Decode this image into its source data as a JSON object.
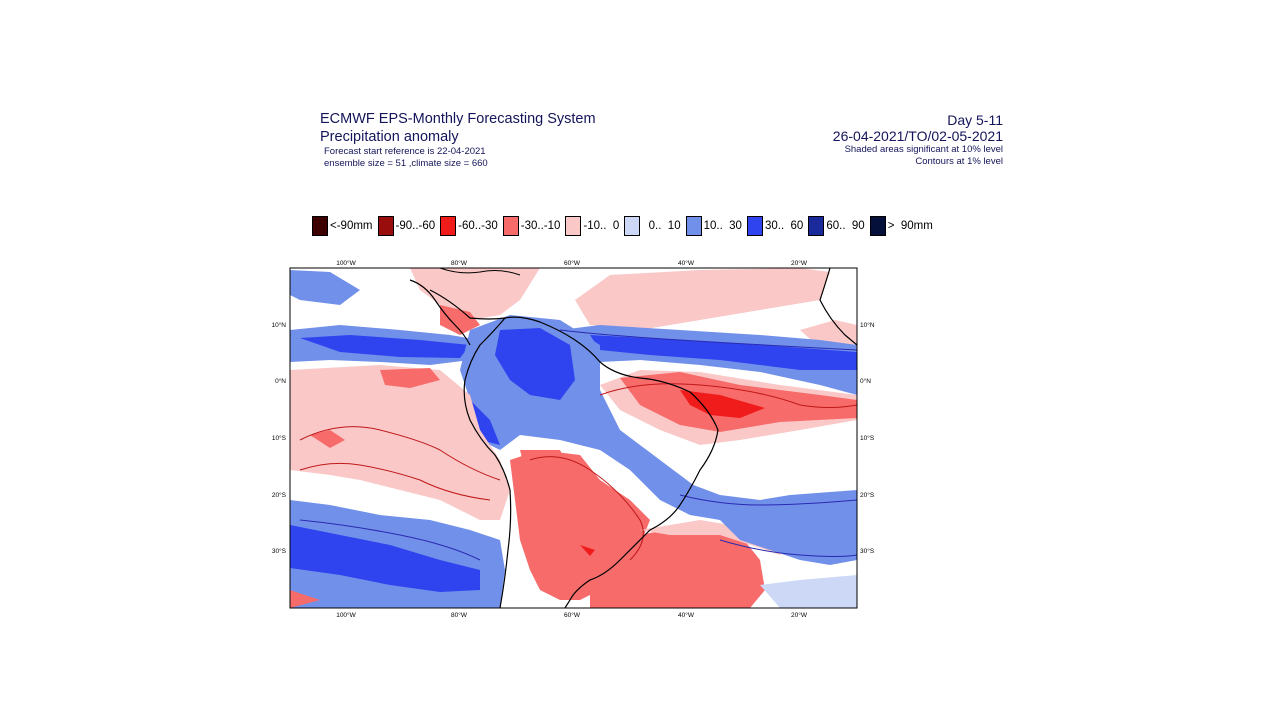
{
  "header": {
    "title_line1": "ECMWF EPS-Monthly Forecasting System",
    "title_line2": "Precipitation anomaly",
    "sub_line1": "Forecast start reference is 22-04-2021",
    "sub_line2": "ensemble size = 51  ,climate size = 660",
    "right_line1": "Day 5-11",
    "right_line2": "26-04-2021/TO/02-05-2021",
    "right_line3": "Shaded areas significant at 10% level",
    "right_line4": "Contours at 1% level"
  },
  "legend": {
    "items": [
      {
        "label": "<-90mm",
        "color": "#3d0000"
      },
      {
        "label": "-90..-60",
        "color": "#9a0d0d"
      },
      {
        "label": "-60..-30",
        "color": "#f01c1c"
      },
      {
        "label": "-30..-10",
        "color": "#f76b6b"
      },
      {
        "label": "-10..  0",
        "color": "#fbc8c8"
      },
      {
        "label": "  0..  10",
        "color": "#cdd8f6"
      },
      {
        "label": "10..  30",
        "color": "#7190ea"
      },
      {
        "label": "30..  60",
        "color": "#2f43ee"
      },
      {
        "label": "60..  90",
        "color": "#1b2a9a"
      },
      {
        "label": ">  90mm",
        "color": "#05103a"
      }
    ]
  },
  "map": {
    "region": "South America and tropical Atlantic",
    "lon_labels": [
      "100°W",
      "80°W",
      "60°W",
      "40°W",
      "20°W"
    ],
    "lat_labels": [
      "10°N",
      "0°N",
      "10°S",
      "20°S",
      "30°S"
    ]
  }
}
